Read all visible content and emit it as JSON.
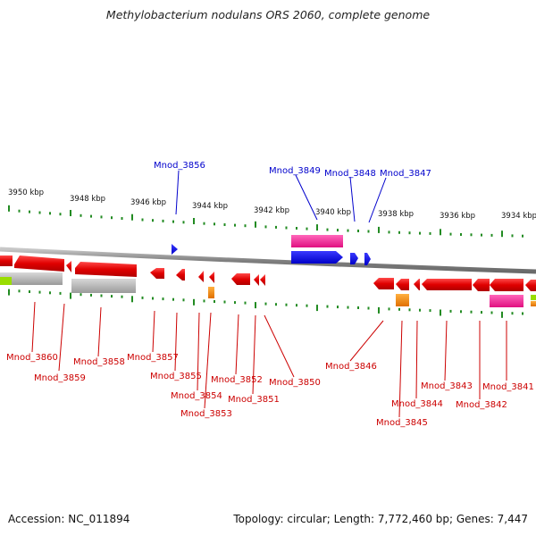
{
  "title": "Methylobacterium nodulans ORS 2060, complete genome",
  "accession": "Accession: NC_011894",
  "topology": "Topology: circular; Length: 7,772,460 bp; Genes: 7,447",
  "scale": {
    "ticks": [
      "3950 kbp",
      "3948 kbp",
      "3946 kbp",
      "3944 kbp",
      "3942 kbp",
      "3940 kbp",
      "3938 kbp",
      "3936 kbp",
      "3934 kbp"
    ]
  },
  "genes_top": [
    "Mnod_3856",
    "Mnod_3849",
    "Mnod_3848",
    "Mnod_3847"
  ],
  "genes_bottom": [
    "Mnod_3860",
    "Mnod_3859",
    "Mnod_3858",
    "Mnod_3857",
    "Mnod_3855",
    "Mnod_3854",
    "Mnod_3853",
    "Mnod_3852",
    "Mnod_3851",
    "Mnod_3850",
    "Mnod_3846",
    "Mnod_3845",
    "Mnod_3844",
    "Mnod_3843",
    "Mnod_3842",
    "Mnod_3841"
  ],
  "colors": {
    "cds": "#e00000",
    "rna_pink": "#ff1493",
    "forward": "#0000ee",
    "pseudo": "#b8b8b8",
    "orange": "#f08000",
    "lime": "#99dd00",
    "green_tick": "#228B22",
    "top_label": "#0000cc",
    "bottom_label": "#cc0000"
  }
}
